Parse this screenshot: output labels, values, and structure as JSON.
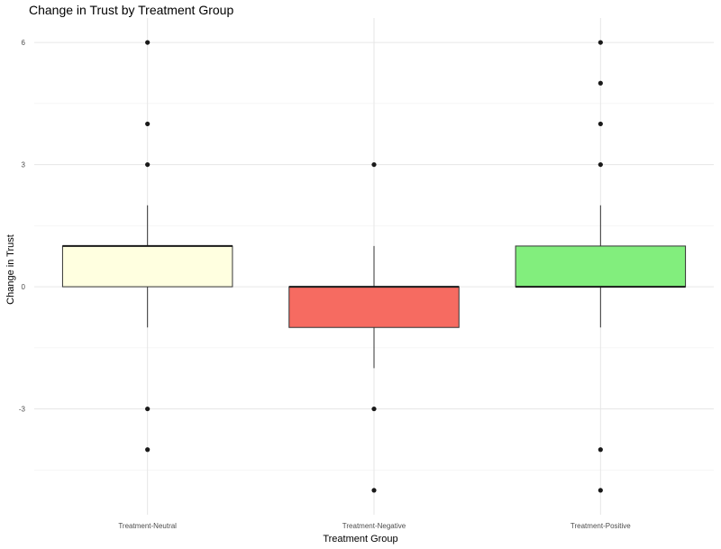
{
  "chart_data": {
    "type": "box",
    "title": "Change in Trust by Treatment Group",
    "xlabel": "Treatment Group",
    "ylabel": "Change in Trust",
    "categories": [
      "Treatment-Neutral",
      "Treatment-Negative",
      "Treatment-Positive"
    ],
    "ylim": [
      -5.6,
      6.6
    ],
    "yticks": [
      -3,
      0,
      3,
      6
    ],
    "grid": true,
    "legend": "none",
    "boxes": [
      {
        "category": "Treatment-Neutral",
        "q1": 0,
        "median": 1,
        "q3": 1,
        "whisker_low": -1,
        "whisker_high": 2,
        "outliers": [
          6,
          4,
          3,
          -3,
          -4
        ],
        "color": "#ffffe0"
      },
      {
        "category": "Treatment-Negative",
        "q1": -1,
        "median": 0,
        "q3": 0,
        "whisker_low": -2,
        "whisker_high": 1,
        "outliers": [
          3,
          -3,
          -5
        ],
        "color": "#f66b61"
      },
      {
        "category": "Treatment-Positive",
        "q1": 0,
        "median": 0,
        "q3": 1,
        "whisker_low": -1,
        "whisker_high": 2,
        "outliers": [
          6,
          5,
          4,
          3,
          -4,
          -5
        ],
        "color": "#82ee7d"
      }
    ]
  }
}
